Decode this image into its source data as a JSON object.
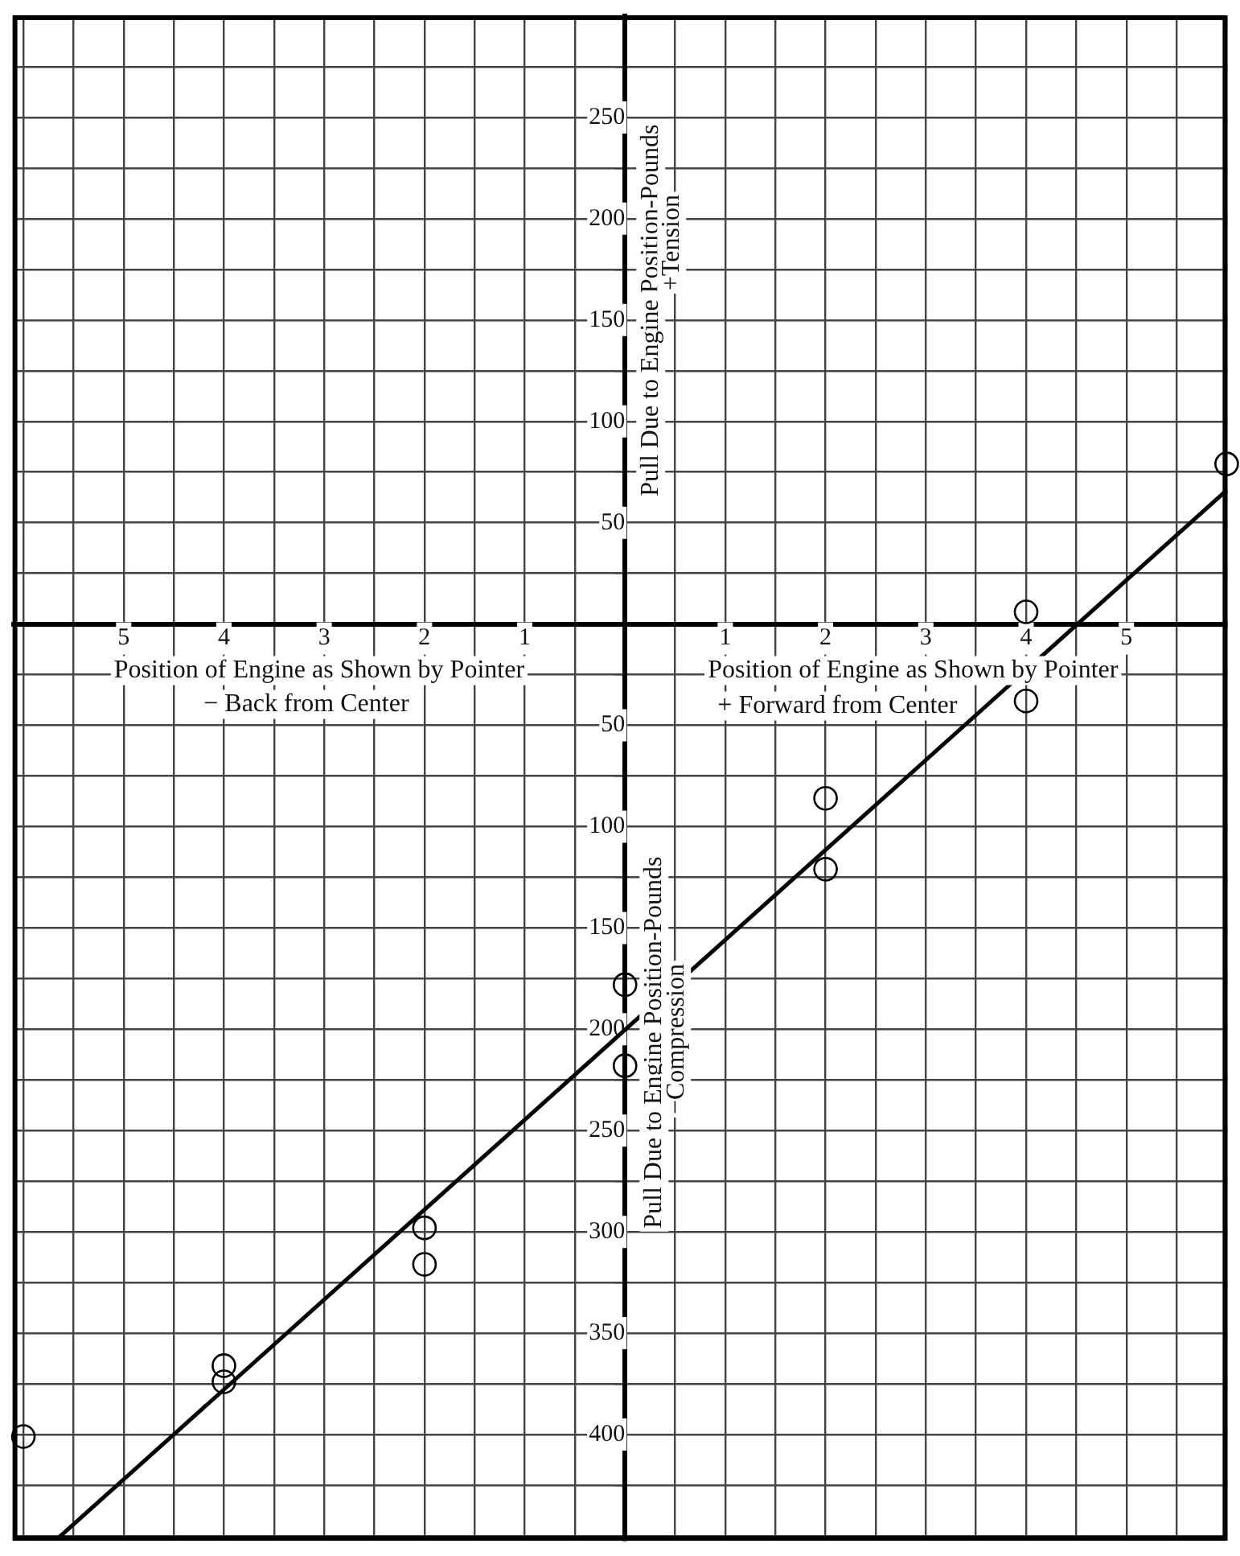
{
  "chart_data": {
    "type": "scatter",
    "xlabel": "Position of Engine as Shown by Pointer",
    "ylabel": "Pull Due to Engine Position-Pounds",
    "annotations": [
      "+ Forward from Center",
      "− Back from Center",
      "+Tension",
      "−Compression"
    ],
    "xlim": [
      -6.1,
      6
    ],
    "ylim": [
      -452,
      300
    ],
    "xticks": [
      {
        "value": -6,
        "label": null
      },
      {
        "value": -5.5,
        "label": null
      },
      {
        "value": -5,
        "label": "5"
      },
      {
        "value": -4.5,
        "label": null
      },
      {
        "value": -4,
        "label": "4"
      },
      {
        "value": -3.5,
        "label": null
      },
      {
        "value": -3,
        "label": "3"
      },
      {
        "value": -2.5,
        "label": null
      },
      {
        "value": -2,
        "label": "2"
      },
      {
        "value": -1.5,
        "label": null
      },
      {
        "value": -1,
        "label": "1"
      },
      {
        "value": -0.5,
        "label": null
      },
      {
        "value": 0,
        "label": null
      },
      {
        "value": 0.5,
        "label": null
      },
      1,
      {
        "value": 1.5,
        "label": null
      },
      2,
      {
        "value": 2.5,
        "label": null
      },
      3,
      {
        "value": 3.5,
        "label": null
      },
      4,
      {
        "value": 4.5,
        "label": null
      },
      5,
      {
        "value": 5.5,
        "label": null
      },
      {
        "value": 6,
        "label": null
      }
    ],
    "yticks": [
      {
        "value": -450,
        "label": null
      },
      {
        "value": -425,
        "label": null
      },
      {
        "value": -400,
        "label": "400"
      },
      {
        "value": -375,
        "label": null
      },
      {
        "value": -350,
        "label": "350"
      },
      {
        "value": -325,
        "label": null
      },
      {
        "value": -300,
        "label": "300"
      },
      {
        "value": -275,
        "label": null
      },
      {
        "value": -250,
        "label": "250"
      },
      {
        "value": -225,
        "label": null
      },
      {
        "value": -200,
        "label": "200"
      },
      {
        "value": -175,
        "label": null
      },
      {
        "value": -150,
        "label": "150"
      },
      {
        "value": -125,
        "label": null
      },
      {
        "value": -100,
        "label": "100"
      },
      {
        "value": -75,
        "label": null
      },
      {
        "value": -50,
        "label": "50"
      },
      {
        "value": -25,
        "label": null
      },
      {
        "value": 0,
        "label": null
      },
      {
        "value": 25,
        "label": null
      },
      50,
      {
        "value": 75,
        "label": null
      },
      100,
      {
        "value": 125,
        "label": null
      },
      150,
      {
        "value": 175,
        "label": null
      },
      200,
      {
        "value": 225,
        "label": null
      },
      250,
      {
        "value": 275,
        "label": null
      },
      {
        "value": 300,
        "label": null
      }
    ],
    "grid": true,
    "marker": "circle",
    "series": [
      {
        "type": "scatter",
        "color": "#000000",
        "x": [
          -6,
          -4,
          -4,
          -2,
          -2,
          0,
          0,
          2,
          2,
          4,
          4,
          6
        ],
        "values": [
          -401,
          -366,
          -374,
          -298,
          -316,
          -178,
          -218,
          -86,
          -121,
          6,
          -38,
          79
        ]
      },
      {
        "type": "line",
        "color": "#000000",
        "marker": "none",
        "x": [
          -5.65,
          6
        ],
        "values": [
          -451,
          66
        ]
      }
    ]
  }
}
